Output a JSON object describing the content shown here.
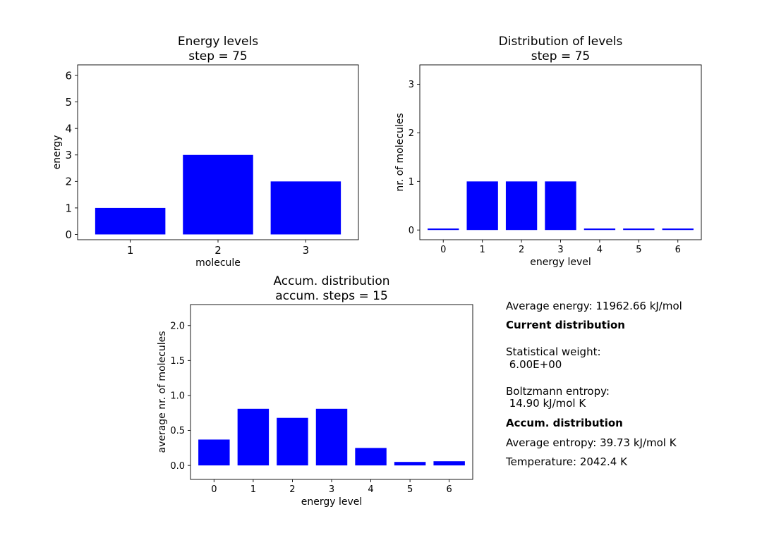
{
  "chart_data": [
    {
      "type": "bar",
      "title": "Energy levels\n step = 75",
      "xlabel": "molecule",
      "ylabel": "energy",
      "categories": [
        "1",
        "2",
        "3"
      ],
      "values": [
        1,
        3,
        2
      ],
      "ylim": [
        -0.2,
        6.4
      ],
      "yticks": [
        "0",
        "1",
        "2",
        "3",
        "4",
        "5",
        "6"
      ],
      "color": "#0000ff",
      "grid": false
    },
    {
      "type": "bar",
      "title": "Distribution of levels\n step = 75",
      "xlabel": "energy level",
      "ylabel": "nr. of molecules",
      "categories": [
        "0",
        "1",
        "2",
        "3",
        "4",
        "5",
        "6"
      ],
      "values": [
        0.03,
        1,
        1,
        1,
        0.03,
        0.03,
        0.03
      ],
      "ylim": [
        -0.2,
        3.4
      ],
      "yticks": [
        "0",
        "1",
        "2",
        "3"
      ],
      "color": "#0000ff",
      "grid": false
    },
    {
      "type": "bar",
      "title": "Accum. distribution\n accum. steps = 15",
      "xlabel": "energy level",
      "ylabel": "average nr. of molecules",
      "categories": [
        "0",
        "1",
        "2",
        "3",
        "4",
        "5",
        "6"
      ],
      "values": [
        0.37,
        0.81,
        0.68,
        0.81,
        0.25,
        0.05,
        0.06
      ],
      "ylim": [
        -0.2,
        2.3
      ],
      "yticks": [
        "0.0",
        "0.5",
        "1.0",
        "1.5",
        "2.0"
      ],
      "color": "#0000ff",
      "grid": false
    }
  ],
  "info": {
    "average_energy": "Average energy: 11962.66 kJ/mol",
    "current_heading": "Current distribution",
    "stat_weight_label": "Statistical weight:",
    "stat_weight_value": " 6.00E+00",
    "boltzmann_label": "Boltzmann entropy:",
    "boltzmann_value": " 14.90 kJ/mol K",
    "accum_heading": "Accum. distribution",
    "average_entropy": "Average entropy: 39.73 kJ/mol K",
    "temperature": "Temperature: 2042.4 K"
  }
}
